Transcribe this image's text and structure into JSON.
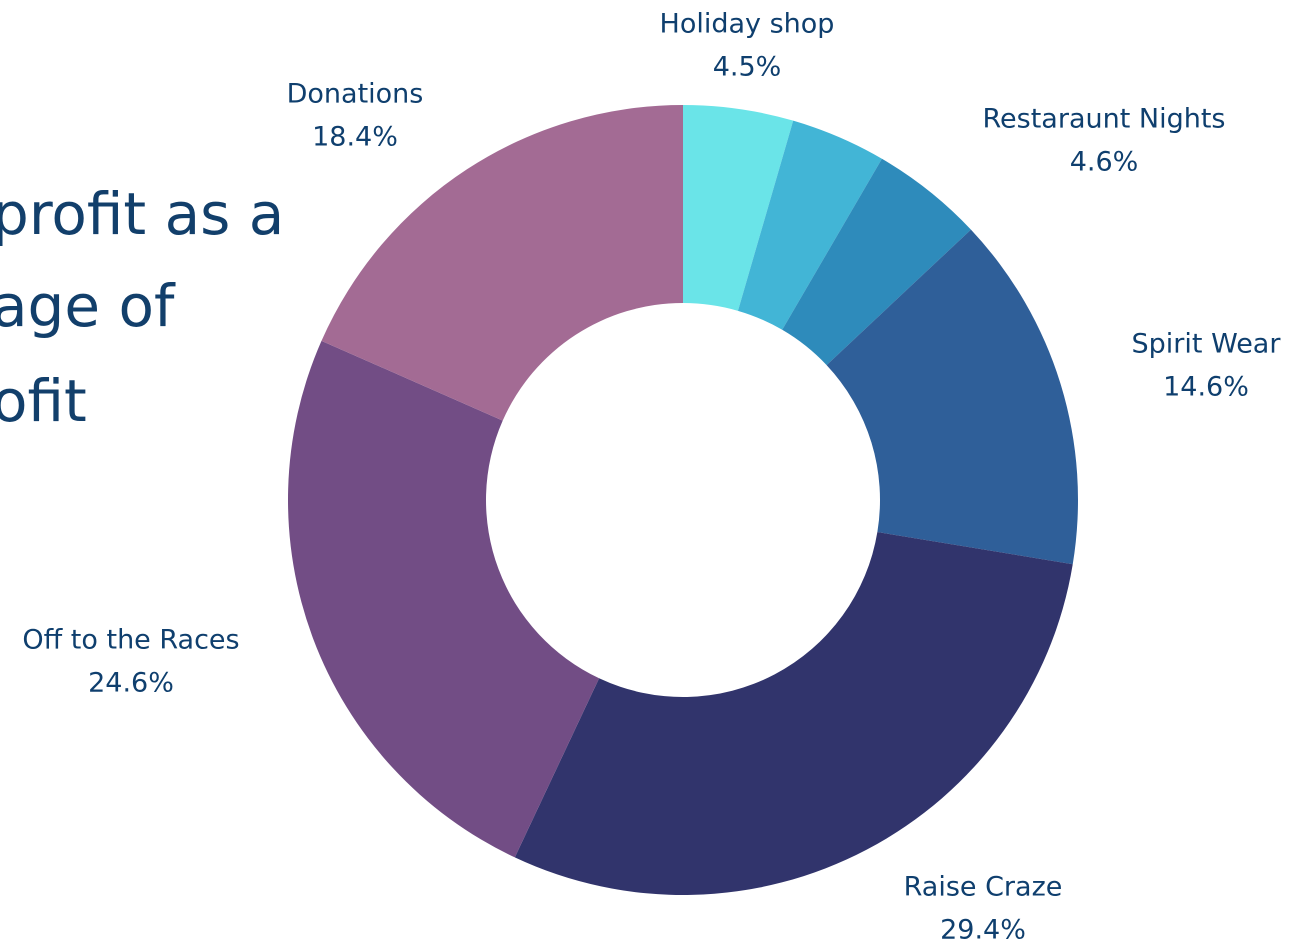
{
  "chart_data": {
    "type": "donut",
    "title_lines": [
      "profit as a",
      "age of",
      "ofit"
    ],
    "categories": [
      "Holiday shop",
      null,
      "Restaraunt Nights",
      "Spirit Wear",
      "Raise Craze",
      "Off to the Races",
      "Donations"
    ],
    "values": [
      4.5,
      3.9,
      4.6,
      14.6,
      29.4,
      24.6,
      18.4
    ],
    "value_labels": [
      "4.5%",
      null,
      "4.6%",
      "14.6%",
      "29.4%",
      "24.6%",
      "18.4%"
    ],
    "colors": [
      "#6ae4e8",
      "#42b5d6",
      "#2e8bbb",
      "#2f5f99",
      "#31346c",
      "#724d85",
      "#a36b94"
    ]
  }
}
